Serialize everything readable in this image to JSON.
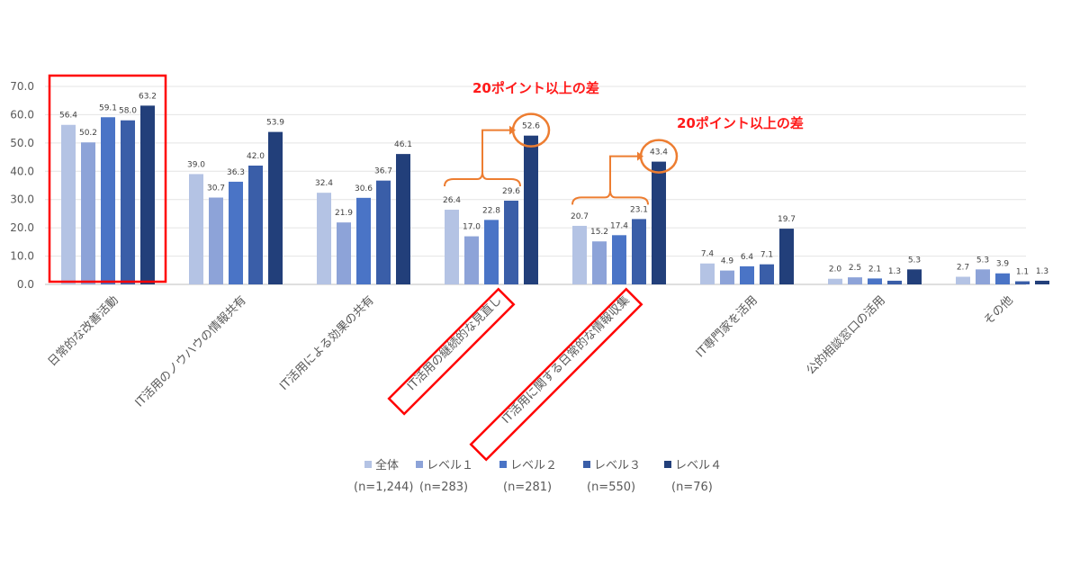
{
  "chart_data": {
    "type": "bar",
    "title": "",
    "xlabel": "",
    "ylabel": "",
    "ylim": [
      0,
      70
    ],
    "yticks": [
      "0.0",
      "10.0",
      "20.0",
      "30.0",
      "40.0",
      "50.0",
      "60.0",
      "70.0"
    ],
    "grid": true,
    "legend_position": "bottom",
    "categories": [
      "日常的な改善活動",
      "IT活用のノウハウの情報共有",
      "IT活用による効果の共有",
      "IT活用の継続的な見直し",
      "IT活用に関する日常的な情報収集",
      "IT専門家を活用",
      "公的相談窓口の活用",
      "その他"
    ],
    "series": [
      {
        "name": "全体",
        "n": "(n=1,244)",
        "color": "#b4c3e4",
        "values": [
          56.4,
          39.0,
          32.4,
          26.4,
          20.7,
          7.4,
          2.0,
          2.7
        ]
      },
      {
        "name": "レベル１",
        "n": "(n=283)",
        "color": "#8da3d8",
        "values": [
          50.2,
          30.7,
          21.9,
          17.0,
          15.2,
          4.9,
          2.5,
          5.3
        ]
      },
      {
        "name": "レベル２",
        "n": "(n=281)",
        "color": "#4a74c6",
        "values": [
          59.1,
          36.3,
          30.6,
          22.8,
          17.4,
          6.4,
          2.1,
          3.9
        ]
      },
      {
        "name": "レベル３",
        "n": "(n=550)",
        "color": "#3a5ea8",
        "values": [
          58.0,
          42.0,
          36.7,
          29.6,
          23.1,
          7.1,
          1.3,
          1.1
        ]
      },
      {
        "name": "レベル４",
        "n": "(n=76)",
        "color": "#223f7a",
        "values": [
          63.2,
          53.9,
          46.1,
          52.6,
          43.4,
          19.7,
          5.3,
          1.3
        ]
      }
    ],
    "annotations": [
      {
        "text": "20ポイント以上の差",
        "category_index": 3
      },
      {
        "text": "20ポイント以上の差",
        "category_index": 4
      }
    ],
    "highlighted_categories": [
      0,
      3,
      4
    ],
    "accent_colors": {
      "highlight_box": "#ff0000",
      "brace": "#ed7d31",
      "annotation_text": "#ff1a1a"
    }
  }
}
